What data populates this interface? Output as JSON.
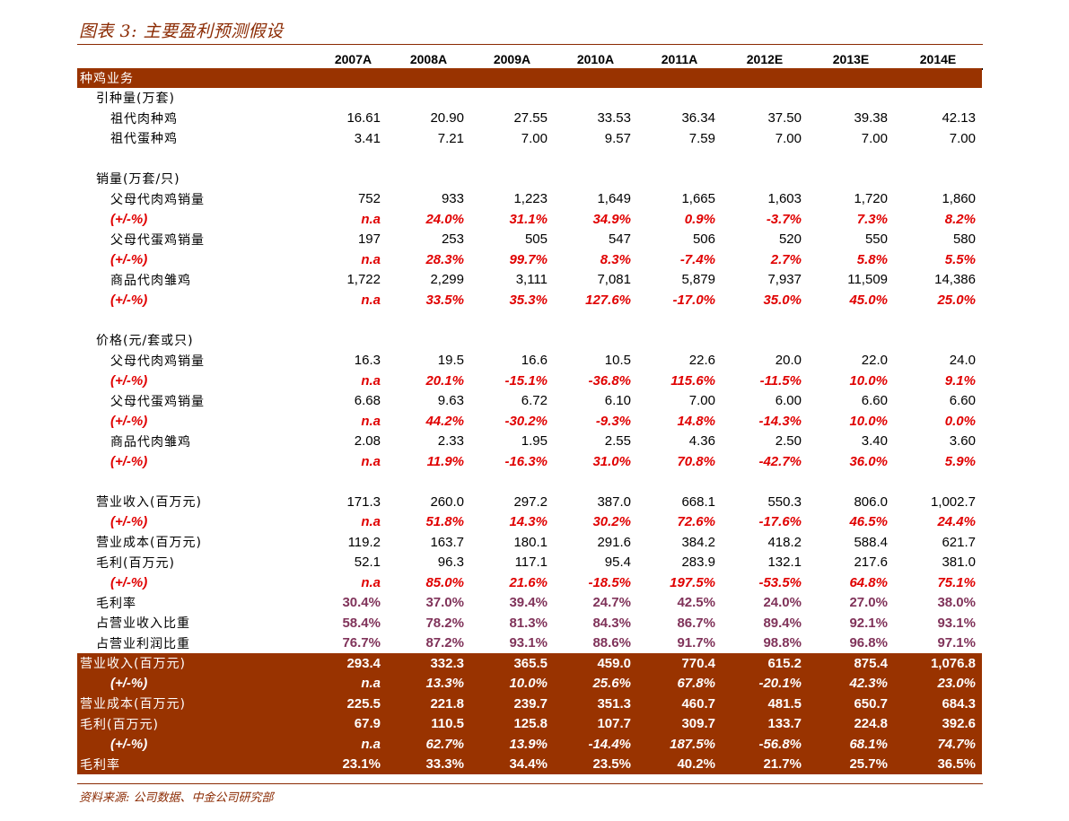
{
  "title": "图表 3: 主要盈利预测假设",
  "source": "资料来源: 公司数据、中金公司研究部",
  "columns": [
    "2007A",
    "2008A",
    "2009A",
    "2010A",
    "2011A",
    "2012E",
    "2013E",
    "2014E"
  ],
  "rows": [
    {
      "type": "section",
      "label": "种鸡业务"
    },
    {
      "type": "group",
      "label": "引种量(万套)"
    },
    {
      "type": "data",
      "indent": 2,
      "label": "祖代肉种鸡",
      "style": "plain",
      "values": [
        "16.61",
        "20.90",
        "27.55",
        "33.53",
        "36.34",
        "37.50",
        "39.38",
        "42.13"
      ]
    },
    {
      "type": "data",
      "indent": 2,
      "label": "祖代蛋种鸡",
      "style": "plain",
      "values": [
        "3.41",
        "7.21",
        "7.00",
        "9.57",
        "7.59",
        "7.00",
        "7.00",
        "7.00"
      ]
    },
    {
      "type": "blank"
    },
    {
      "type": "group",
      "label": "销量(万套/只)"
    },
    {
      "type": "data",
      "indent": 2,
      "label": "父母代肉鸡销量",
      "style": "plain",
      "values": [
        "752",
        "933",
        "1,223",
        "1,649",
        "1,665",
        "1,603",
        "1,720",
        "1,860"
      ]
    },
    {
      "type": "data",
      "indent": 2,
      "label": "(+/-%)",
      "style": "red",
      "values": [
        "n.a",
        "24.0%",
        "31.1%",
        "34.9%",
        "0.9%",
        "-3.7%",
        "7.3%",
        "8.2%"
      ]
    },
    {
      "type": "data",
      "indent": 2,
      "label": "父母代蛋鸡销量",
      "style": "plain",
      "values": [
        "197",
        "253",
        "505",
        "547",
        "506",
        "520",
        "550",
        "580"
      ]
    },
    {
      "type": "data",
      "indent": 2,
      "label": "(+/-%)",
      "style": "red",
      "values": [
        "n.a",
        "28.3%",
        "99.7%",
        "8.3%",
        "-7.4%",
        "2.7%",
        "5.8%",
        "5.5%"
      ]
    },
    {
      "type": "data",
      "indent": 2,
      "label": "商品代肉雏鸡",
      "style": "plain",
      "values": [
        "1,722",
        "2,299",
        "3,111",
        "7,081",
        "5,879",
        "7,937",
        "11,509",
        "14,386"
      ]
    },
    {
      "type": "data",
      "indent": 2,
      "label": "(+/-%)",
      "style": "red",
      "values": [
        "n.a",
        "33.5%",
        "35.3%",
        "127.6%",
        "-17.0%",
        "35.0%",
        "45.0%",
        "25.0%"
      ]
    },
    {
      "type": "blank"
    },
    {
      "type": "group",
      "label": "价格(元/套或只)"
    },
    {
      "type": "data",
      "indent": 2,
      "label": "父母代肉鸡销量",
      "style": "plain",
      "values": [
        "16.3",
        "19.5",
        "16.6",
        "10.5",
        "22.6",
        "20.0",
        "22.0",
        "24.0"
      ]
    },
    {
      "type": "data",
      "indent": 2,
      "label": "(+/-%)",
      "style": "red",
      "values": [
        "n.a",
        "20.1%",
        "-15.1%",
        "-36.8%",
        "115.6%",
        "-11.5%",
        "10.0%",
        "9.1%"
      ]
    },
    {
      "type": "data",
      "indent": 2,
      "label": "父母代蛋鸡销量",
      "style": "plain",
      "values": [
        "6.68",
        "9.63",
        "6.72",
        "6.10",
        "7.00",
        "6.00",
        "6.60",
        "6.60"
      ]
    },
    {
      "type": "data",
      "indent": 2,
      "label": "(+/-%)",
      "style": "red",
      "values": [
        "n.a",
        "44.2%",
        "-30.2%",
        "-9.3%",
        "14.8%",
        "-14.3%",
        "10.0%",
        "0.0%"
      ]
    },
    {
      "type": "data",
      "indent": 2,
      "label": "商品代肉雏鸡",
      "style": "plain",
      "values": [
        "2.08",
        "2.33",
        "1.95",
        "2.55",
        "4.36",
        "2.50",
        "3.40",
        "3.60"
      ]
    },
    {
      "type": "data",
      "indent": 2,
      "label": "(+/-%)",
      "style": "red",
      "values": [
        "n.a",
        "11.9%",
        "-16.3%",
        "31.0%",
        "70.8%",
        "-42.7%",
        "36.0%",
        "5.9%"
      ]
    },
    {
      "type": "blank"
    },
    {
      "type": "data",
      "indent": 1,
      "label": "营业收入(百万元)",
      "style": "plain",
      "values": [
        "171.3",
        "260.0",
        "297.2",
        "387.0",
        "668.1",
        "550.3",
        "806.0",
        "1,002.7"
      ]
    },
    {
      "type": "data",
      "indent": 2,
      "label": "(+/-%)",
      "style": "red",
      "values": [
        "n.a",
        "51.8%",
        "14.3%",
        "30.2%",
        "72.6%",
        "-17.6%",
        "46.5%",
        "24.4%"
      ]
    },
    {
      "type": "data",
      "indent": 1,
      "label": "营业成本(百万元)",
      "style": "plain",
      "values": [
        "119.2",
        "163.7",
        "180.1",
        "291.6",
        "384.2",
        "418.2",
        "588.4",
        "621.7"
      ]
    },
    {
      "type": "data",
      "indent": 1,
      "label": "毛利(百万元)",
      "style": "plain",
      "values": [
        "52.1",
        "96.3",
        "117.1",
        "95.4",
        "283.9",
        "132.1",
        "217.6",
        "381.0"
      ]
    },
    {
      "type": "data",
      "indent": 2,
      "label": "(+/-%)",
      "style": "red",
      "values": [
        "n.a",
        "85.0%",
        "21.6%",
        "-18.5%",
        "197.5%",
        "-53.5%",
        "64.8%",
        "75.1%"
      ]
    },
    {
      "type": "data",
      "indent": 1,
      "label": "毛利率",
      "style": "purple",
      "values": [
        "30.4%",
        "37.0%",
        "39.4%",
        "24.7%",
        "42.5%",
        "24.0%",
        "27.0%",
        "38.0%"
      ]
    },
    {
      "type": "data",
      "indent": 1,
      "label": "占营业收入比重",
      "style": "purple",
      "values": [
        "58.4%",
        "78.2%",
        "81.3%",
        "84.3%",
        "86.7%",
        "89.4%",
        "92.1%",
        "93.1%"
      ]
    },
    {
      "type": "data",
      "indent": 1,
      "label": "占营业利润比重",
      "style": "purple",
      "values": [
        "76.7%",
        "87.2%",
        "93.1%",
        "88.6%",
        "91.7%",
        "98.8%",
        "96.8%",
        "97.1%"
      ]
    },
    {
      "type": "foot",
      "pct": false,
      "label": "营业收入(百万元)",
      "values": [
        "293.4",
        "332.3",
        "365.5",
        "459.0",
        "770.4",
        "615.2",
        "875.4",
        "1,076.8"
      ]
    },
    {
      "type": "foot",
      "pct": true,
      "label": "(+/-%)",
      "values": [
        "n.a",
        "13.3%",
        "10.0%",
        "25.6%",
        "67.8%",
        "-20.1%",
        "42.3%",
        "23.0%"
      ]
    },
    {
      "type": "foot",
      "pct": false,
      "label": "营业成本(百万元)",
      "values": [
        "225.5",
        "221.8",
        "239.7",
        "351.3",
        "460.7",
        "481.5",
        "650.7",
        "684.3"
      ]
    },
    {
      "type": "foot",
      "pct": false,
      "label": "毛利(百万元)",
      "values": [
        "67.9",
        "110.5",
        "125.8",
        "107.7",
        "309.7",
        "133.7",
        "224.8",
        "392.6"
      ]
    },
    {
      "type": "foot",
      "pct": true,
      "label": "(+/-%)",
      "values": [
        "n.a",
        "62.7%",
        "13.9%",
        "-14.4%",
        "187.5%",
        "-56.8%",
        "68.1%",
        "74.7%"
      ]
    },
    {
      "type": "foot",
      "pct": false,
      "label": "毛利率",
      "values": [
        "23.1%",
        "33.3%",
        "34.4%",
        "23.5%",
        "40.2%",
        "21.7%",
        "25.7%",
        "36.5%"
      ]
    }
  ]
}
